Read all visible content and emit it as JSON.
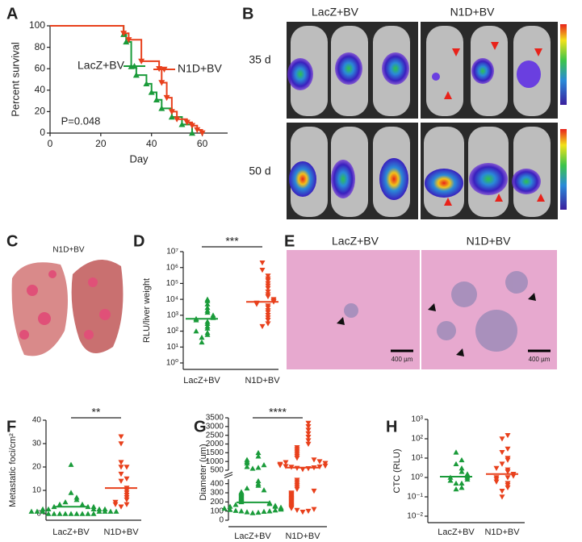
{
  "chart_data": [
    {
      "type": "line",
      "label": "A",
      "drawstyle": "steps-post",
      "xlabel": "Day",
      "ylabel": "Percent survival",
      "annotation": "P=0.048",
      "xlim": [
        0,
        70
      ],
      "xticks": [
        0,
        20,
        40,
        60
      ],
      "ylim": [
        0,
        100
      ],
      "yticks": [
        0,
        20,
        40,
        60,
        80,
        100
      ],
      "series": [
        {
          "name": "LacZ+BV",
          "color": "#1a9b3a",
          "marker": "^",
          "x": [
            0,
            29,
            30,
            32,
            34,
            38,
            40,
            42,
            44,
            48,
            52,
            56
          ],
          "values": [
            100,
            92,
            85,
            62,
            54,
            46,
            38,
            31,
            23,
            15,
            8,
            0
          ]
        },
        {
          "name": "N1D+BV",
          "color": "#e8401c",
          "marker": "v",
          "x": [
            0,
            29,
            31,
            36,
            43,
            44,
            46,
            48,
            50,
            54,
            56,
            58,
            60
          ],
          "values": [
            100,
            93,
            87,
            67,
            60,
            47,
            33,
            20,
            13,
            10,
            7,
            3,
            0
          ]
        }
      ]
    },
    {
      "type": "strip",
      "label": "D",
      "ylabel": "RLU/liver weight",
      "significance": "***",
      "yscale": "log",
      "ylim": [
        1,
        10000000
      ],
      "yticks": [
        {
          "value": 1,
          "label": "10⁰"
        },
        {
          "value": 10,
          "label": "10¹"
        },
        {
          "value": 100,
          "label": "10²"
        },
        {
          "value": 1000,
          "label": "10³"
        },
        {
          "value": 10000,
          "label": "10⁴"
        },
        {
          "value": 100000,
          "label": "10⁵"
        },
        {
          "value": 1000000,
          "label": "10⁶"
        },
        {
          "value": 10000000,
          "label": "10⁷"
        }
      ],
      "categories": [
        "LacZ+BV",
        "N1D+BV"
      ],
      "colors": [
        "#1a9b3a",
        "#e8401c"
      ],
      "markers": [
        "^",
        "v"
      ],
      "values": [
        [
          20,
          40,
          60,
          80,
          100,
          150,
          200,
          300,
          400,
          500,
          600,
          700,
          800,
          1000,
          1500,
          2000,
          3000,
          5000,
          8000,
          10000
        ],
        [
          200,
          300,
          500,
          700,
          1000,
          1500,
          2000,
          3000,
          4000,
          5000,
          6000,
          7000,
          8000,
          10000,
          15000,
          20000,
          30000,
          50000,
          70000,
          100000,
          150000,
          200000,
          300000,
          700000,
          2000000
        ]
      ],
      "center_lines": [
        600,
        7000
      ]
    },
    {
      "type": "strip",
      "label": "F",
      "ylabel": "Metastatic foci/cm²",
      "significance": "**",
      "ylim": [
        0,
        40
      ],
      "yticks": [
        0,
        10,
        20,
        30,
        40
      ],
      "categories": [
        "LacZ+BV",
        "N1D+BV"
      ],
      "colors": [
        "#1a9b3a",
        "#e8401c"
      ],
      "markers": [
        "^",
        "v"
      ],
      "values": [
        [
          0,
          0,
          0,
          0,
          0,
          0,
          0,
          0,
          0,
          1,
          1,
          1,
          1,
          1,
          1,
          1,
          2,
          2,
          2,
          2,
          2,
          3,
          3,
          3,
          4,
          4,
          5,
          6,
          7,
          9,
          21
        ],
        [
          3,
          4,
          4,
          5,
          6,
          7,
          8,
          9,
          10,
          11,
          14,
          15,
          17,
          20,
          20,
          22,
          30,
          33
        ]
      ],
      "center_lines": [
        3,
        11
      ]
    },
    {
      "type": "strip",
      "label": "G",
      "ylabel": "Diameter (um)",
      "significance": "****",
      "ylim": [
        0,
        3500
      ],
      "ysegments": [
        [
          0,
          450
        ],
        [
          500,
          3500
        ]
      ],
      "yticks": [
        0,
        100,
        200,
        300,
        400,
        500,
        1000,
        1500,
        2000,
        2500,
        3000,
        3500
      ],
      "categories": [
        "LacZ+BV",
        "N1D+BV"
      ],
      "colors": [
        "#1a9b3a",
        "#e8401c"
      ],
      "markers": [
        "^",
        "v"
      ],
      "values": [
        [
          80,
          85,
          90,
          95,
          100,
          100,
          105,
          110,
          115,
          120,
          125,
          130,
          130,
          140,
          150,
          150,
          160,
          170,
          180,
          190,
          200,
          210,
          220,
          230,
          240,
          250,
          260,
          270,
          280,
          290,
          300,
          310,
          330,
          350,
          380,
          400,
          430,
          600,
          650,
          700,
          800,
          900,
          1000,
          1100,
          1300,
          1500
        ],
        [
          90,
          100,
          110,
          120,
          130,
          140,
          150,
          160,
          170,
          180,
          190,
          200,
          210,
          220,
          230,
          240,
          250,
          260,
          270,
          280,
          290,
          300,
          320,
          340,
          360,
          380,
          400,
          420,
          440,
          550,
          600,
          620,
          650,
          680,
          700,
          720,
          750,
          780,
          800,
          850,
          900,
          950,
          1000,
          1100,
          1200,
          1300,
          1400,
          1500,
          1600,
          1700,
          1800,
          2000,
          2200,
          2400,
          2600,
          2800,
          3000,
          3200
        ]
      ],
      "center_lines": [
        195,
        650
      ]
    },
    {
      "type": "strip",
      "label": "H",
      "ylabel": "CTC (RLU)",
      "yscale": "log",
      "ylim": [
        0.01,
        1000
      ],
      "yticks": [
        {
          "value": 0.01,
          "label": "10⁻²"
        },
        {
          "value": 0.1,
          "label": "10⁻¹"
        },
        {
          "value": 1,
          "label": "10⁰"
        },
        {
          "value": 10,
          "label": "10¹"
        },
        {
          "value": 100,
          "label": "10²"
        },
        {
          "value": 1000,
          "label": "10³"
        }
      ],
      "categories": [
        "LacZ+BV",
        "N1D+BV"
      ],
      "colors": [
        "#1a9b3a",
        "#e8401c"
      ],
      "markers": [
        "^",
        "v"
      ],
      "values": [
        [
          0.25,
          0.3,
          0.5,
          0.5,
          0.7,
          0.8,
          1,
          1,
          1.2,
          1.5,
          2,
          3,
          5,
          8,
          20
        ],
        [
          0.1,
          0.2,
          0.3,
          0.4,
          0.5,
          0.6,
          0.8,
          1,
          1,
          1.2,
          1.5,
          2,
          2.5,
          3,
          5,
          8,
          10,
          20,
          30,
          100,
          150
        ]
      ],
      "center_lines": [
        1.1,
        1.5
      ]
    }
  ],
  "figure_panels": [
    {
      "label": "B",
      "column_titles": [
        "LacZ+BV",
        "N1D+BV"
      ],
      "row_titles": [
        "35 d",
        "50 d"
      ]
    },
    {
      "label": "C",
      "title": "N1D+BV"
    },
    {
      "label": "E",
      "column_titles": [
        "LacZ+BV",
        "N1D+BV"
      ],
      "scale_bars": [
        "400 µm",
        "400 µm"
      ]
    }
  ]
}
